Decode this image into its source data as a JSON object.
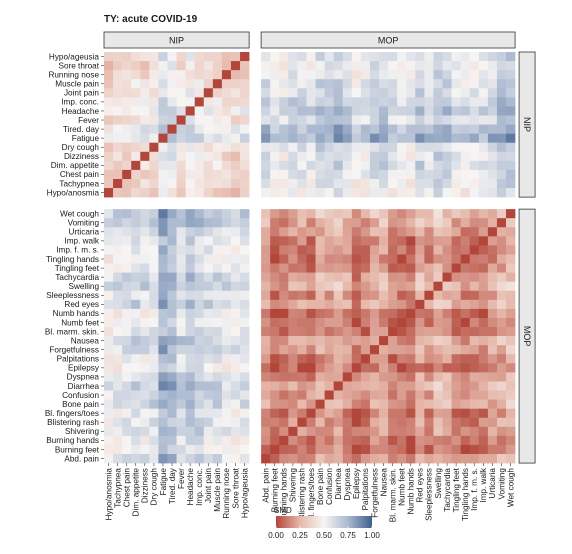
{
  "title": "TY: acute COVID-19",
  "chart_data": {
    "type": "heatmap",
    "title": "TY: acute COVID-19",
    "facets": {
      "columns": [
        "NIP",
        "MOP"
      ],
      "rows": [
        "NIP",
        "MOP"
      ]
    },
    "nip_symptoms": [
      "Hypo/ageusia",
      "Sore throat",
      "Running nose",
      "Muscle pain",
      "Joint pain",
      "Imp. conc.",
      "Headache",
      "Fever",
      "Tired. day",
      "Fatigue",
      "Dry cough",
      "Dizziness",
      "Dim. appetite",
      "Chest pain",
      "Tachypnea",
      "Hypo/anosmia"
    ],
    "mop_symptoms": [
      "Wet cough",
      "Vomiting",
      "Urticaria",
      "Imp. walk",
      "Imp. f. m. s.",
      "Tingling hands",
      "Tingling feet",
      "Tachycardia",
      "Swelling",
      "Sleeplessness",
      "Red eyes",
      "Numb hands",
      "Numb feet",
      "Bl. marm. skin.",
      "Nausea",
      "Forgetfulness",
      "Palpitations",
      "Epilepsy",
      "Dyspnea",
      "Diarrhea",
      "Confusion",
      "Bone pain",
      "Bl. fingers/toes",
      "Blistering rash",
      "Shivering",
      "Burning hands",
      "Burning feet",
      "Abd. pain"
    ],
    "legend": {
      "title": "SMD",
      "ticks": [
        "0.00",
        "0.25",
        "0.50",
        "0.75",
        "1.00"
      ],
      "range": [
        0,
        1
      ],
      "colors": [
        "#b2463a",
        "#e6b8aa",
        "#f7f5f4",
        "#a9b8cf",
        "#3f5f8f"
      ]
    },
    "diagonal_value": 0.0,
    "block_means": {
      "NIP-NIP": 0.38,
      "NIP-MOP": 0.58,
      "MOP-MOP": 0.2
    },
    "row_offsets": {
      "nip": [
        0.0,
        -0.03,
        -0.02,
        0.02,
        0.03,
        0.08,
        0.12,
        0.05,
        0.16,
        0.2,
        0.02,
        0.0,
        0.03,
        0.0,
        -0.02,
        -0.05
      ],
      "mop": [
        0.08,
        0.05,
        0.0,
        -0.05,
        -0.04,
        -0.07,
        -0.03,
        0.03,
        0.07,
        -0.02,
        0.04,
        -0.08,
        -0.09,
        -0.05,
        0.05,
        0.02,
        -0.06,
        -0.1,
        0.0,
        0.06,
        0.02,
        0.04,
        -0.06,
        -0.03,
        -0.02,
        -0.08,
        -0.09,
        0.0
      ]
    }
  }
}
